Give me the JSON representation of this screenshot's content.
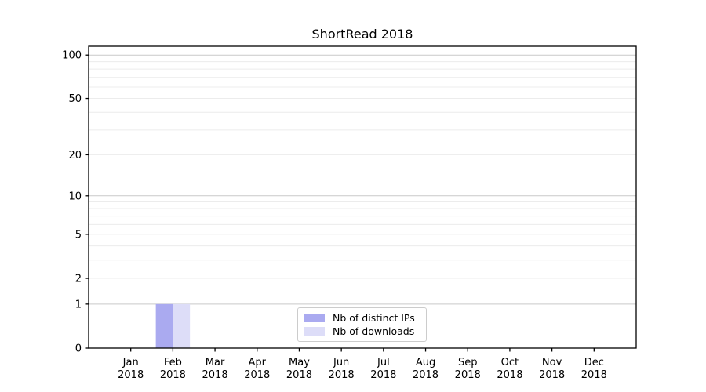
{
  "chart_data": {
    "type": "bar",
    "title": "ShortRead 2018",
    "categories": [
      "Jan",
      "Feb",
      "Mar",
      "Apr",
      "May",
      "Jun",
      "Jul",
      "Aug",
      "Sep",
      "Oct",
      "Nov",
      "Dec"
    ],
    "x_tick_year": "2018",
    "series": [
      {
        "name": "Nb of distinct IPs",
        "color": "#aaaaf0",
        "values": [
          0,
          1,
          0,
          0,
          0,
          0,
          0,
          0,
          0,
          0,
          0,
          0
        ]
      },
      {
        "name": "Nb of downloads",
        "color": "#ddddf8",
        "values": [
          0,
          1,
          0,
          0,
          0,
          0,
          0,
          0,
          0,
          0,
          0,
          0
        ]
      }
    ],
    "y_scale": "log10(1+x)",
    "y_ticks": [
      0,
      1,
      2,
      5,
      10,
      20,
      50,
      100
    ],
    "y_major_gridlines": [
      1,
      10,
      100
    ],
    "y_minor_gridlines": [
      2,
      3,
      4,
      5,
      6,
      7,
      8,
      9,
      20,
      30,
      40,
      50,
      60,
      70,
      80,
      90
    ],
    "ylim": [
      0,
      115
    ],
    "grid": "horizontal",
    "legend_position": "bottom-center",
    "colors": {
      "axis": "#000000",
      "text": "#000000",
      "grid_major": "#c9c9c9",
      "grid_minor": "#ececec"
    }
  }
}
